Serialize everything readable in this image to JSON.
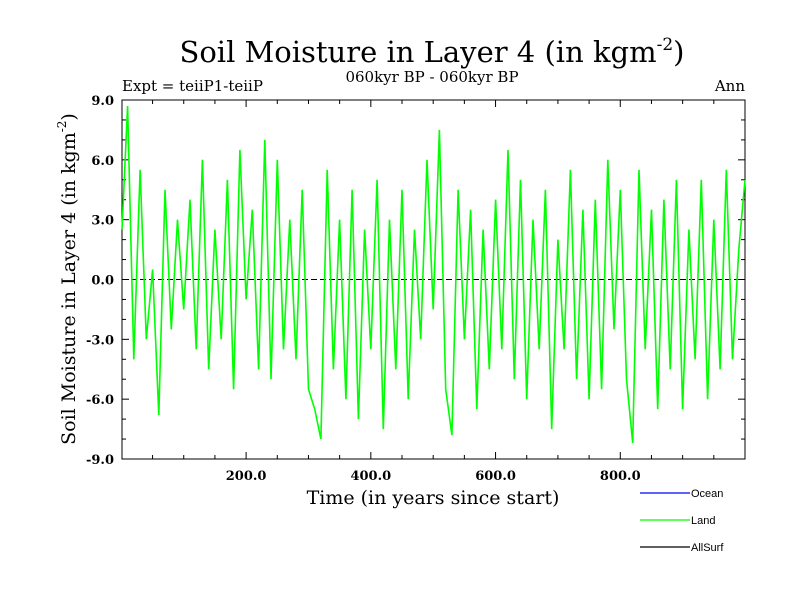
{
  "chart_data": {
    "type": "line",
    "title": "Soil Moisture in Layer 4 (in kgm",
    "title_sup": "-2",
    "title_close": ")",
    "subtitle": "060kyr BP - 060kyr BP",
    "left_label": "Expt = teiiP1-teiiP",
    "right_label": "Ann",
    "xlabel": "Time (in years since start)",
    "ylabel": "Soil Moisture in Layer 4 (in kgm",
    "ylabel_sup": "-2",
    "ylabel_close": ")",
    "xlim": [
      1,
      1000
    ],
    "ylim": [
      -9,
      9
    ],
    "xticks": [
      200,
      400,
      600,
      800
    ],
    "xtick_labels": [
      "200.0",
      "400.0",
      "600.0",
      "800.0"
    ],
    "yticks": [
      -9,
      -6,
      -3,
      0,
      3,
      6,
      9
    ],
    "ytick_labels": [
      "-9.0",
      "-6.0",
      "-3.0",
      "0.0",
      "3.0",
      "6.0",
      "9.0"
    ],
    "zero_line": true,
    "legend_position": "bottom-right",
    "series": [
      {
        "name": "Ocean",
        "color": "#0000ff",
        "x": [],
        "values": []
      },
      {
        "name": "Land",
        "color": "#00ff00",
        "x": [
          1,
          10,
          20,
          30,
          40,
          50,
          60,
          70,
          80,
          90,
          100,
          110,
          120,
          130,
          140,
          150,
          160,
          170,
          180,
          190,
          200,
          210,
          220,
          230,
          240,
          250,
          260,
          270,
          280,
          290,
          300,
          310,
          320,
          330,
          340,
          350,
          360,
          370,
          380,
          390,
          400,
          410,
          420,
          430,
          440,
          450,
          460,
          470,
          480,
          490,
          500,
          510,
          520,
          530,
          540,
          550,
          560,
          570,
          580,
          590,
          600,
          610,
          620,
          630,
          640,
          650,
          660,
          670,
          680,
          690,
          700,
          710,
          720,
          730,
          740,
          750,
          760,
          770,
          780,
          790,
          800,
          810,
          820,
          830,
          840,
          850,
          860,
          870,
          880,
          890,
          900,
          910,
          920,
          930,
          940,
          950,
          960,
          970,
          980,
          990,
          1000
        ],
        "values": [
          2.5,
          8.7,
          -4.0,
          5.5,
          -3.0,
          0.5,
          -6.8,
          4.5,
          -2.5,
          3.0,
          -1.5,
          4.0,
          -3.5,
          6.0,
          -4.5,
          2.5,
          -3.0,
          5.0,
          -5.5,
          6.5,
          -1.0,
          3.5,
          -4.5,
          7.0,
          -5.0,
          6.0,
          -3.5,
          3.0,
          -4.0,
          4.5,
          -5.5,
          -6.5,
          -8.0,
          5.5,
          -4.5,
          3.0,
          -6.0,
          4.5,
          -7.0,
          2.5,
          -3.5,
          5.0,
          -7.5,
          3.0,
          -4.5,
          4.5,
          -6.0,
          2.5,
          -3.0,
          6.0,
          -1.5,
          7.5,
          -5.5,
          -7.8,
          4.5,
          -3.0,
          3.5,
          -6.5,
          2.5,
          -4.5,
          4.0,
          -3.5,
          6.5,
          -5.0,
          5.0,
          -6.0,
          3.0,
          -3.5,
          4.5,
          -7.5,
          2.0,
          -3.5,
          5.5,
          -5.0,
          3.5,
          -6.0,
          4.0,
          -5.5,
          6.0,
          -2.5,
          4.5,
          -5.0,
          -8.2,
          5.5,
          -3.5,
          3.5,
          -6.5,
          4.0,
          -4.5,
          5.0,
          -6.5,
          2.5,
          -4.0,
          5.0,
          -6.0,
          3.0,
          -4.5,
          5.5,
          -4.0,
          1.5,
          5.0
        ]
      },
      {
        "name": "AllSurf",
        "color": "#000000",
        "x": [],
        "values": []
      }
    ]
  }
}
